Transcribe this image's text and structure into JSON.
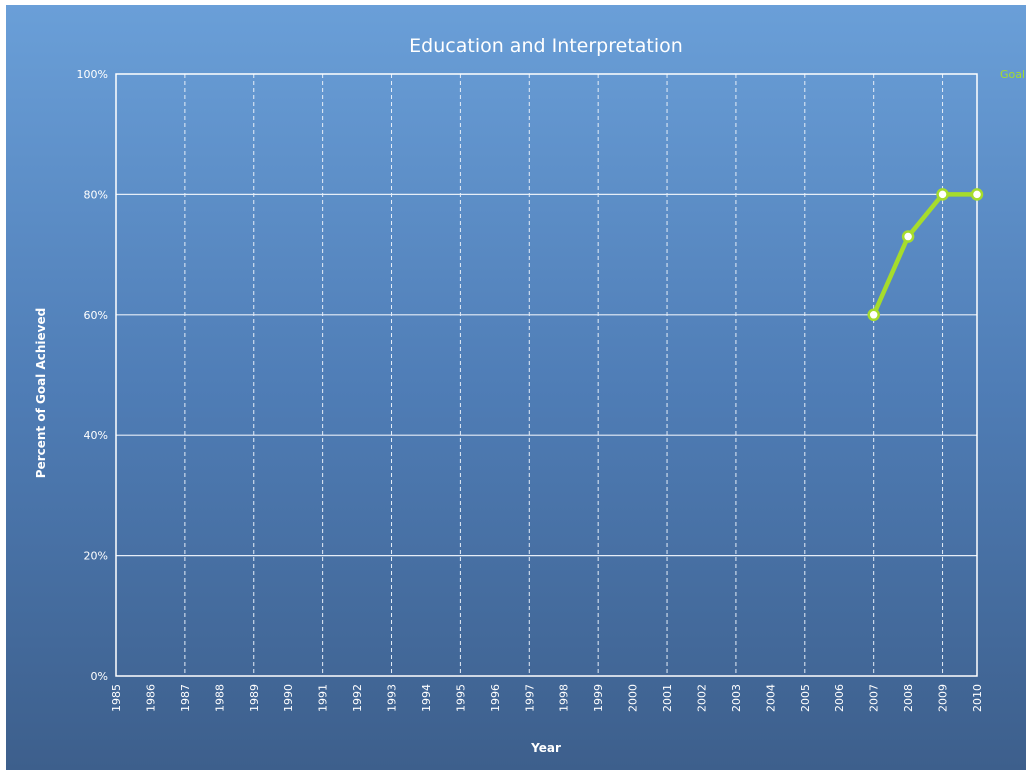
{
  "chart_data": {
    "type": "line",
    "title": "Education and Interpretation",
    "xlabel": "Year",
    "ylabel": "Percent of Goal Achieved",
    "x_ticks": [
      "1985",
      "1986",
      "1987",
      "1988",
      "1989",
      "1990",
      "1991",
      "1992",
      "1993",
      "1994",
      "1995",
      "1996",
      "1997",
      "1998",
      "1999",
      "2000",
      "2001",
      "2002",
      "2003",
      "2004",
      "2005",
      "2006",
      "2007",
      "2008",
      "2009",
      "2010"
    ],
    "y_ticks": [
      "0%",
      "20%",
      "40%",
      "60%",
      "80%",
      "100%"
    ],
    "xlim": [
      1985,
      2010
    ],
    "ylim": [
      0,
      100
    ],
    "grid": true,
    "legend_position": "top-right",
    "series": [
      {
        "name": "Goal",
        "color": "#a6dc2c",
        "x": [
          2007,
          2008,
          2009,
          2010
        ],
        "y": [
          60,
          73,
          80,
          80
        ]
      }
    ]
  }
}
